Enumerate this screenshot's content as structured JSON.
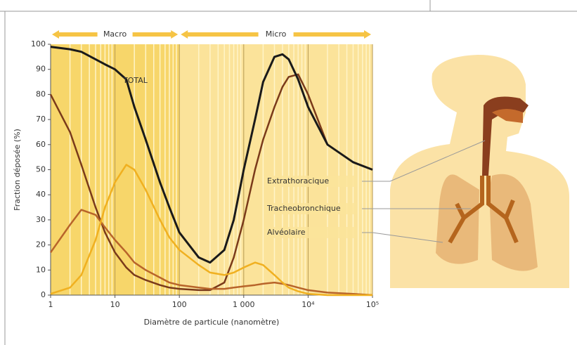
{
  "chart_data": {
    "type": "line",
    "y_label": "Fraction déposée (%)",
    "x_label": "Diamètre de particule (nanomètre)",
    "log_x": true,
    "xlim": [
      1,
      100000
    ],
    "xticks": [
      1,
      10,
      100,
      {
        "value": 1000,
        "label": "1 000"
      },
      {
        "value": 10000,
        "label": "10⁴"
      },
      {
        "value": 100000,
        "label": "10⁵"
      }
    ],
    "ylim": [
      0,
      100
    ],
    "yticks": [
      0,
      10,
      20,
      30,
      40,
      50,
      60,
      70,
      80,
      90,
      100
    ],
    "regions": [
      {
        "label": "Macro",
        "from": 1,
        "to": 100
      },
      {
        "label": "Micro",
        "from": 100,
        "to": 100000
      }
    ],
    "x": [
      1,
      2,
      3,
      5,
      7,
      10,
      15,
      20,
      30,
      50,
      70,
      100,
      200,
      300,
      500,
      700,
      1000,
      1500,
      2000,
      3000,
      4000,
      5000,
      7000,
      10000,
      20000,
      50000,
      100000
    ],
    "series": [
      {
        "name": "TOTAL",
        "color": "#1a1a1a",
        "values": [
          99,
          98,
          97,
          94,
          92,
          90,
          86,
          75,
          62,
          45,
          35,
          25,
          15,
          13,
          18,
          30,
          50,
          70,
          85,
          95,
          96,
          94,
          86,
          75,
          60,
          53,
          50
        ]
      },
      {
        "name": "Extrathoracique",
        "color": "#7a3a1a",
        "values": [
          80,
          65,
          52,
          35,
          25,
          17,
          11,
          8,
          6,
          4,
          3,
          2.5,
          2,
          2,
          5,
          15,
          30,
          50,
          62,
          75,
          83,
          87,
          88,
          80,
          60,
          53,
          50
        ]
      },
      {
        "name": "Tracheobronchique",
        "color": "#b8642a",
        "values": [
          17,
          28,
          34,
          32,
          27,
          22,
          17,
          13,
          10,
          7,
          5,
          4,
          3,
          2.5,
          2.5,
          3,
          3.5,
          4,
          4.5,
          5,
          4.5,
          4,
          3,
          2,
          1,
          0.5,
          0
        ]
      },
      {
        "name": "Alvéolaire",
        "color": "#f0b020",
        "values": [
          0.5,
          3,
          8,
          22,
          35,
          45,
          52,
          50,
          42,
          30,
          23,
          18,
          12,
          9,
          8,
          9,
          11,
          13,
          12,
          8,
          5,
          3,
          1.5,
          0.5,
          0,
          0,
          0
        ]
      }
    ]
  }
}
